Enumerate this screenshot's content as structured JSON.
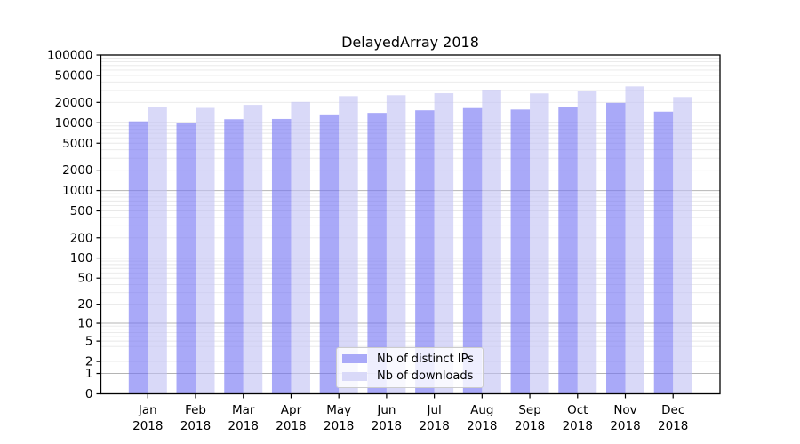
{
  "chart_data": {
    "type": "bar",
    "title": "DelayedArray 2018",
    "categories": [
      "Jan",
      "Feb",
      "Mar",
      "Apr",
      "May",
      "Jun",
      "Jul",
      "Aug",
      "Sep",
      "Oct",
      "Nov",
      "Dec"
    ],
    "x_tick_second_line": "2018",
    "series": [
      {
        "name": "Nb of distinct IPs",
        "color": "#a9a9f8",
        "values": [
          10500,
          10000,
          11300,
          11400,
          13300,
          14000,
          15300,
          16500,
          15700,
          17000,
          19700,
          14600
        ]
      },
      {
        "name": "Nb of downloads",
        "color": "#d9d9f8",
        "values": [
          16900,
          16600,
          18400,
          20300,
          24700,
          25500,
          27300,
          30800,
          27100,
          29300,
          34400,
          24000
        ]
      }
    ],
    "yscale": "log1p",
    "ylim": [
      0,
      100000
    ],
    "y_ticks": [
      0,
      1,
      2,
      5,
      10,
      20,
      50,
      100,
      200,
      500,
      1000,
      2000,
      5000,
      10000,
      20000,
      50000,
      100000
    ],
    "xlabel": "",
    "ylabel": "",
    "grid": {
      "orientation": "horizontal",
      "major_color": "#b4b4b4",
      "minor_color": "#e8e8e8"
    },
    "legend_position": "lower center inside",
    "bar_opacity": 0.62,
    "axis_color": "#000000"
  }
}
